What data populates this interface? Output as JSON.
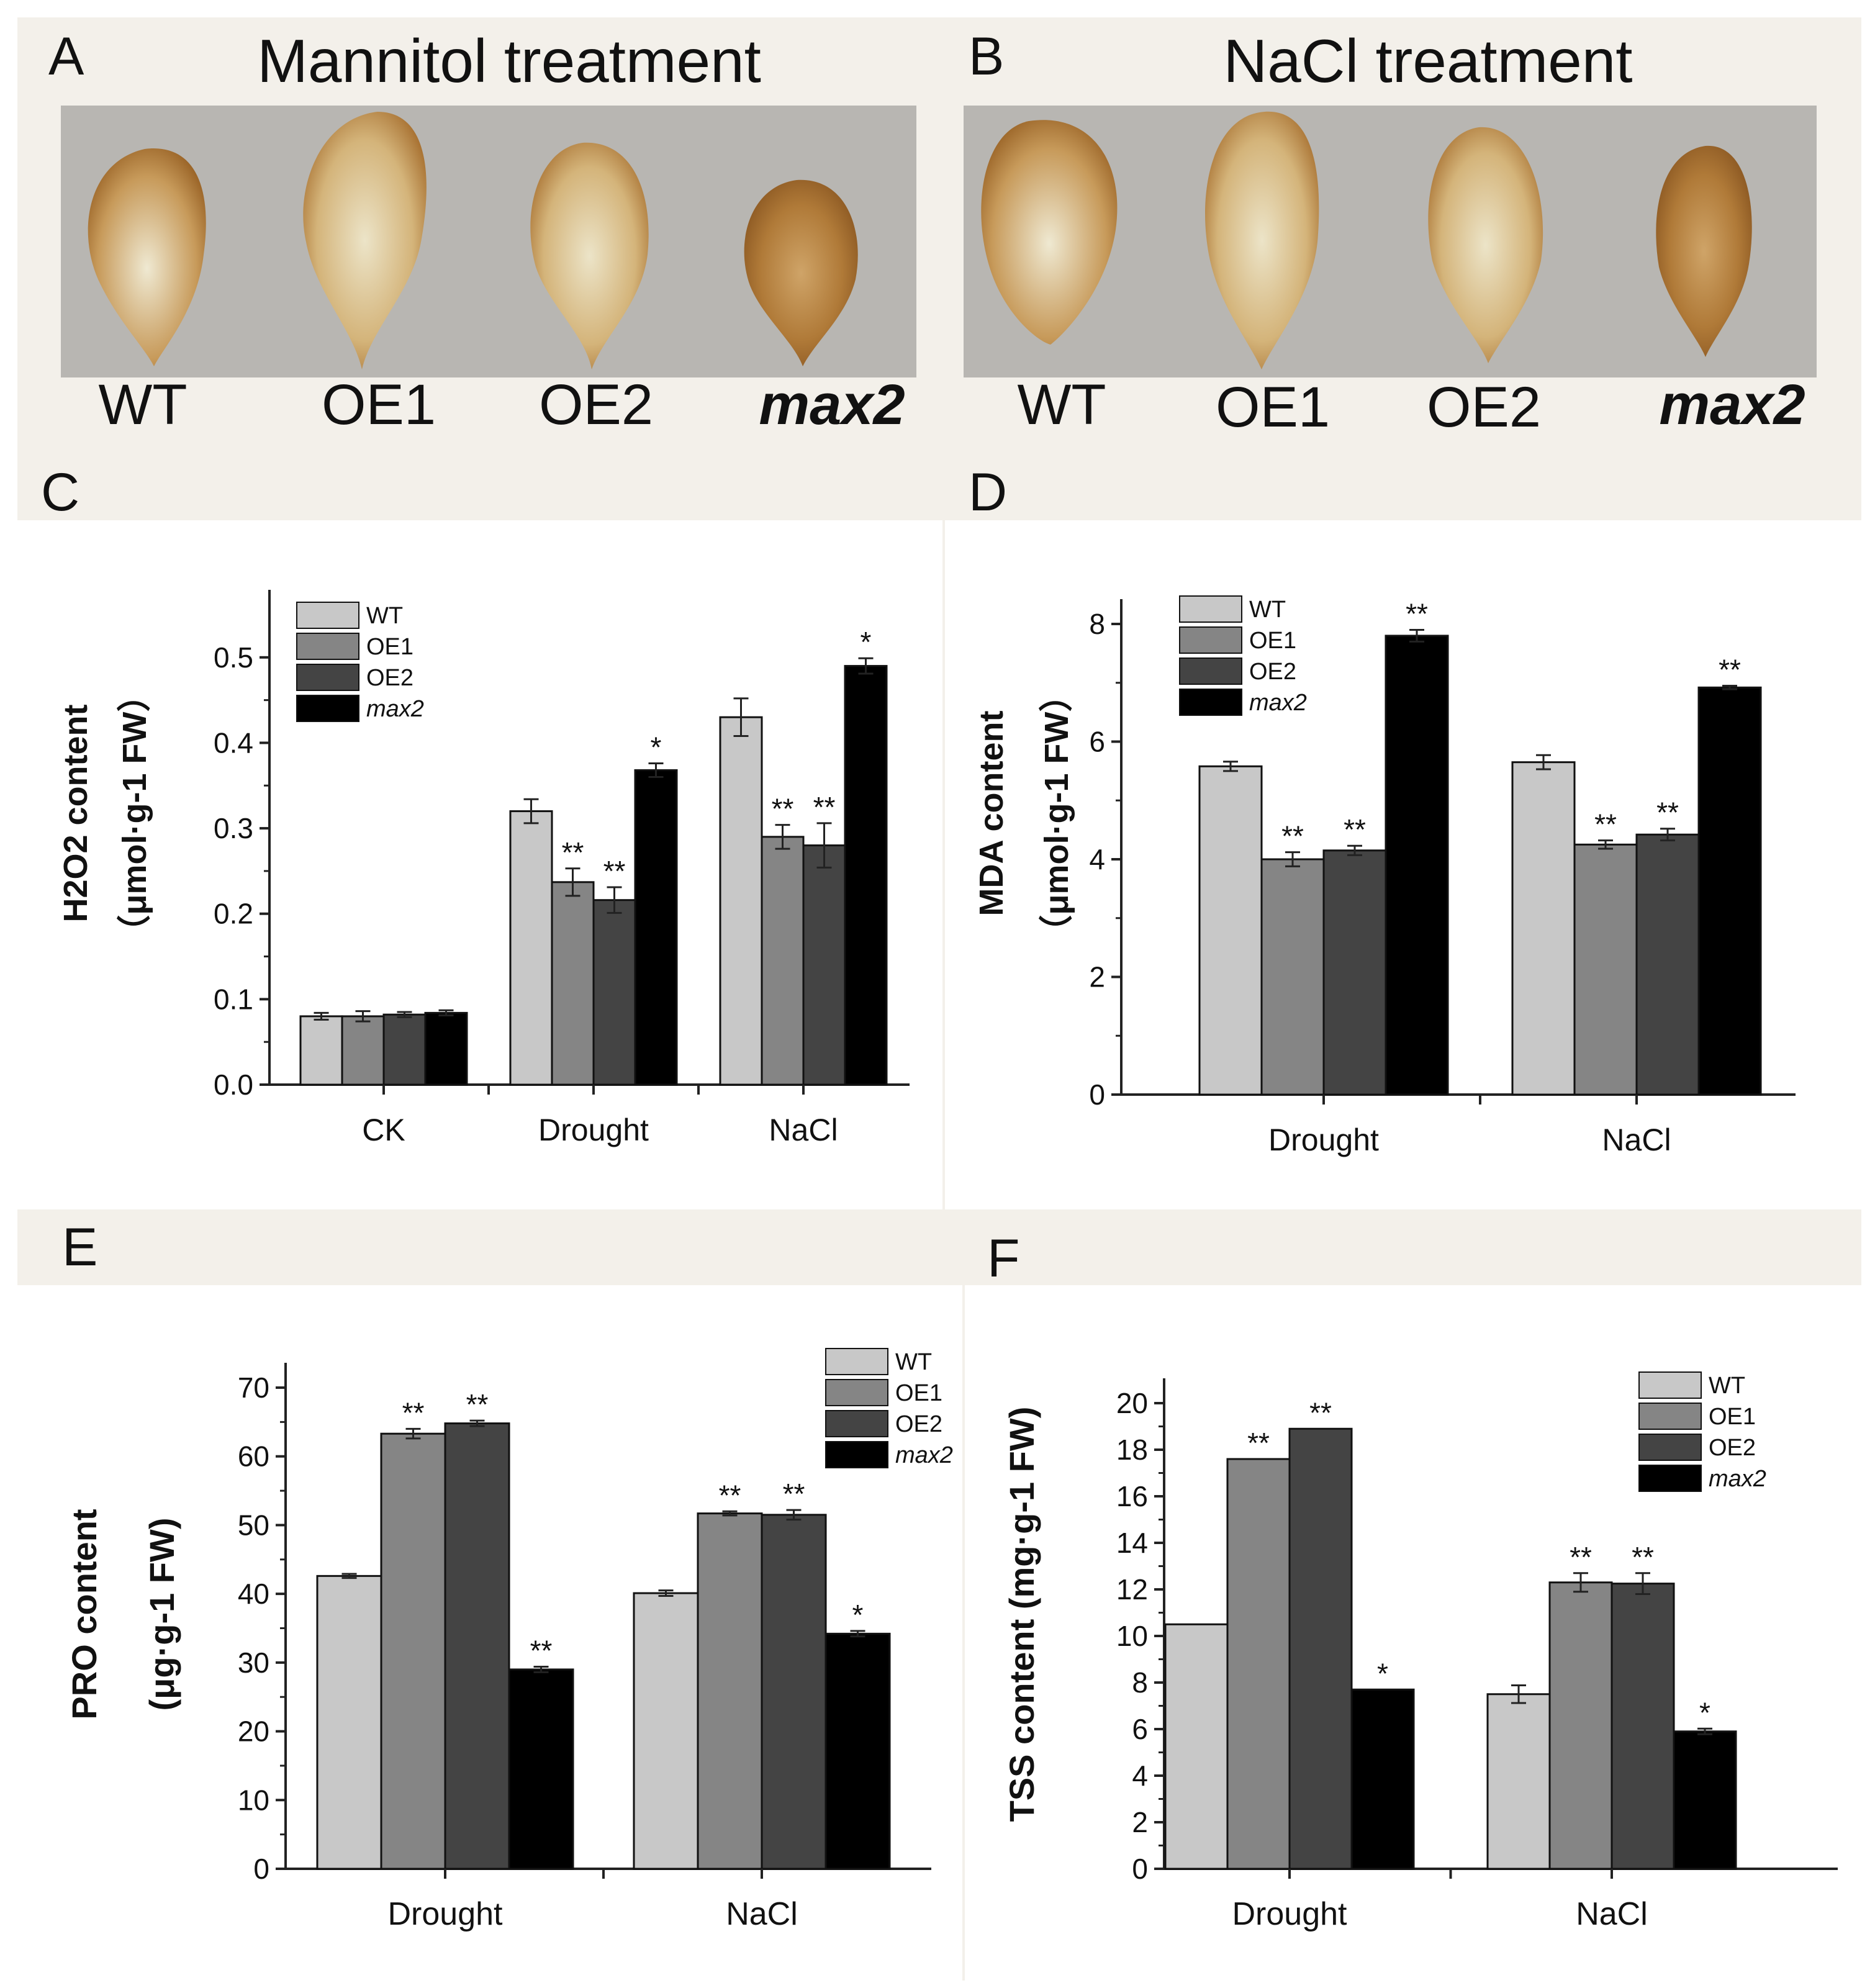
{
  "panels": {
    "A": {
      "letter": "A",
      "title": "Mannitol treatment",
      "labels": [
        "WT",
        "OE1",
        "OE2",
        "max2"
      ]
    },
    "B": {
      "letter": "B",
      "title": "NaCl treatment",
      "labels": [
        "WT",
        "OE1",
        "OE2",
        "max2"
      ]
    },
    "C": {
      "letter": "C"
    },
    "D": {
      "letter": "D"
    },
    "E": {
      "letter": "E"
    },
    "F": {
      "letter": "F"
    }
  },
  "colors": {
    "WT": "#c8c8c8",
    "OE1": "#858585",
    "OE2": "#444444",
    "max2": "#000000",
    "leaf_dark": "#a06a2c",
    "leaf_light": "#ece4c8"
  },
  "chart_data": [
    {
      "id": "C",
      "type": "bar",
      "categories": [
        "CK",
        "Drought",
        "NaCl"
      ],
      "ylabel_main": "H2O2 content",
      "ylabel_unit": "（μmol·g-1 FW）",
      "ylim": [
        0,
        0.55
      ],
      "yticks": [
        "0.0",
        "0.1",
        "0.2",
        "0.3",
        "0.4",
        "0.5"
      ],
      "ytick_values": [
        0,
        0.1,
        0.2,
        0.3,
        0.4,
        0.5
      ],
      "series": [
        {
          "name": "WT",
          "values": [
            0.08,
            0.32,
            0.43
          ],
          "errors": [
            0.004,
            0.014,
            0.022
          ],
          "marks": [
            "",
            "",
            ""
          ]
        },
        {
          "name": "OE1",
          "values": [
            0.08,
            0.237,
            0.29
          ],
          "errors": [
            0.006,
            0.016,
            0.014
          ],
          "marks": [
            "",
            "**",
            "**"
          ]
        },
        {
          "name": "OE2",
          "values": [
            0.082,
            0.216,
            0.28
          ],
          "errors": [
            0.003,
            0.015,
            0.026
          ],
          "marks": [
            "",
            "**",
            "**"
          ]
        },
        {
          "name": "max2",
          "values": [
            0.084,
            0.368,
            0.49
          ],
          "errors": [
            0.003,
            0.008,
            0.009
          ],
          "marks": [
            "",
            "*",
            "*"
          ]
        }
      ]
    },
    {
      "id": "D",
      "type": "bar",
      "categories": [
        "Drought",
        "NaCl"
      ],
      "ylabel_main": "MDA content",
      "ylabel_unit": "（μmol·g-1 FW）",
      "ylim": [
        0,
        8
      ],
      "yticks": [
        "0",
        "2",
        "4",
        "6",
        "8"
      ],
      "ytick_values": [
        0,
        2,
        4,
        6,
        8
      ],
      "series": [
        {
          "name": "WT",
          "values": [
            5.58,
            5.65
          ],
          "errors": [
            0.08,
            0.12
          ],
          "marks": [
            "",
            ""
          ]
        },
        {
          "name": "OE1",
          "values": [
            4.0,
            4.25
          ],
          "errors": [
            0.12,
            0.07
          ],
          "marks": [
            "**",
            "**"
          ]
        },
        {
          "name": "OE2",
          "values": [
            4.15,
            4.42
          ],
          "errors": [
            0.08,
            0.1
          ],
          "marks": [
            "**",
            "**"
          ]
        },
        {
          "name": "max2",
          "values": [
            7.8,
            6.92
          ],
          "errors": [
            0.1,
            0.03
          ],
          "marks": [
            "**",
            "**"
          ]
        }
      ]
    },
    {
      "id": "E",
      "type": "bar",
      "categories": [
        "Drought",
        "NaCl"
      ],
      "ylabel_main": "PRO content",
      "ylabel_unit": "(μg·g-1 FW)",
      "ylim": [
        0,
        70
      ],
      "yticks": [
        "0",
        "10",
        "20",
        "30",
        "40",
        "50",
        "60",
        "70"
      ],
      "ytick_values": [
        0,
        10,
        20,
        30,
        40,
        50,
        60,
        70
      ],
      "series": [
        {
          "name": "WT",
          "values": [
            42.6,
            40.1
          ],
          "errors": [
            0.3,
            0.4
          ],
          "marks": [
            "",
            ""
          ]
        },
        {
          "name": "OE1",
          "values": [
            63.3,
            51.7
          ],
          "errors": [
            0.7,
            0.3
          ],
          "marks": [
            "**",
            "**"
          ]
        },
        {
          "name": "OE2",
          "values": [
            64.8,
            51.5
          ],
          "errors": [
            0.4,
            0.7
          ],
          "marks": [
            "**",
            "**"
          ]
        },
        {
          "name": "max2",
          "values": [
            29.0,
            34.2
          ],
          "errors": [
            0.4,
            0.4
          ],
          "marks": [
            "**",
            "*"
          ]
        }
      ]
    },
    {
      "id": "F",
      "type": "bar",
      "categories": [
        "Drought",
        "NaCl"
      ],
      "ylabel_main": "TSS content (mg·g-1 FW)",
      "ylabel_unit": "",
      "ylim": [
        0,
        20
      ],
      "yticks": [
        "0",
        "2",
        "4",
        "6",
        "8",
        "10",
        "12",
        "14",
        "16",
        "18",
        "20"
      ],
      "ytick_values": [
        0,
        2,
        4,
        6,
        8,
        10,
        12,
        14,
        16,
        18,
        20
      ],
      "series": [
        {
          "name": "WT",
          "values": [
            10.5,
            7.5
          ],
          "errors": [
            0,
            0.38
          ],
          "marks": [
            "",
            ""
          ]
        },
        {
          "name": "OE1",
          "values": [
            17.6,
            12.3
          ],
          "errors": [
            0,
            0.4
          ],
          "marks": [
            "**",
            "**"
          ]
        },
        {
          "name": "OE2",
          "values": [
            18.9,
            12.25
          ],
          "errors": [
            0,
            0.45
          ],
          "marks": [
            "**",
            "**"
          ]
        },
        {
          "name": "max2",
          "values": [
            7.7,
            5.9
          ],
          "errors": [
            0,
            0.12
          ],
          "marks": [
            "*",
            "*"
          ]
        }
      ]
    }
  ]
}
